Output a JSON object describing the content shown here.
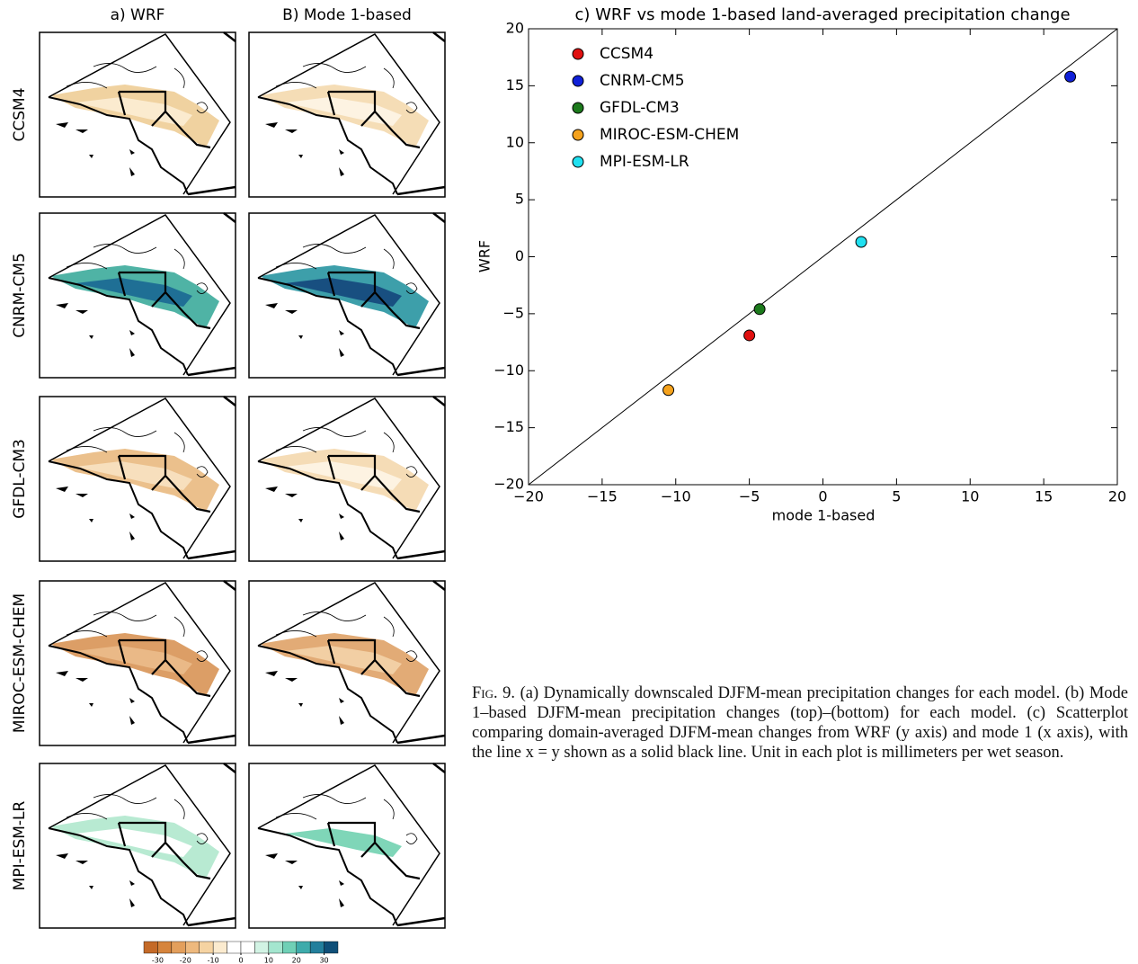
{
  "chart_data": {
    "type": "scatter",
    "title": "c) WRF vs mode 1-based land-averaged precipitation change",
    "xlabel": "mode 1-based",
    "ylabel": "WRF",
    "series": [
      {
        "name": "CCSM4",
        "color": "#e01010",
        "x": [
          -5.0
        ],
        "values": [
          -6.9
        ]
      },
      {
        "name": "CNRM-CM5",
        "color": "#1020d8",
        "x": [
          16.8
        ],
        "values": [
          15.8
        ]
      },
      {
        "name": "GFDL-CM3",
        "color": "#1c7a1c",
        "x": [
          -4.3
        ],
        "values": [
          -4.6
        ]
      },
      {
        "name": "MIROC-ESM-CHEM",
        "color": "#f5a21c",
        "x": [
          -10.5
        ],
        "values": [
          -11.7
        ]
      },
      {
        "name": "MPI-ESM-LR",
        "color": "#20e0f0",
        "x": [
          2.6
        ],
        "values": [
          1.3
        ]
      }
    ],
    "xlim": [
      -20,
      20
    ],
    "xticks": [
      {
        "value": -20,
        "label": "−20"
      },
      {
        "value": -15,
        "label": "−15"
      },
      {
        "value": -10,
        "label": "−10"
      },
      {
        "value": -5,
        "label": "−5"
      },
      0,
      5,
      10,
      15,
      20
    ],
    "ylim": [
      -20,
      20
    ],
    "yticks": [
      {
        "value": -20,
        "label": "−20"
      },
      {
        "value": -15,
        "label": "−15"
      },
      {
        "value": -10,
        "label": "−10"
      },
      {
        "value": -5,
        "label": "−5"
      },
      0,
      5,
      10,
      15,
      20
    ],
    "identity_line": true,
    "grid": false,
    "legend": "upper left"
  },
  "maps": {
    "column_titles": [
      "a) WRF",
      "B) Mode 1-based"
    ],
    "row_labels": [
      "CCSM4",
      "CNRM-CM5",
      "GFDL-CM3",
      "MIROC-ESM-CHEM",
      "MPI-ESM-LR"
    ],
    "colorbar": {
      "boundaries": [
        -35,
        -30,
        -25,
        -20,
        -15,
        -10,
        -5,
        0,
        5,
        10,
        15,
        20,
        25,
        30,
        35
      ],
      "colors": [
        "#c46a28",
        "#d6843c",
        "#e39f5c",
        "#eeb97e",
        "#f5d3a2",
        "#fbebcf",
        "#ffffff",
        "#ffffff",
        "#d2f3e4",
        "#a4e6cf",
        "#6fd0b6",
        "#3eabab",
        "#237f9c",
        "#0f4f78"
      ],
      "ticks": [
        {
          "value": -30,
          "label": "-30"
        },
        {
          "value": -20,
          "label": "-20"
        },
        {
          "value": -10,
          "label": "-10"
        },
        0,
        10,
        20,
        30
      ]
    }
  },
  "caption": {
    "label": "Fig. 9.",
    "text": "(a) Dynamically downscaled DJFM-mean precipitation changes for each model. (b) Mode 1–based DJFM-mean precipitation changes (top)–(bottom) for each model. (c) Scatterplot comparing domain-averaged DJFM-mean changes from WRF (y axis) and mode 1 (x axis), with the line x = y shown as a solid black line. Unit in each plot is millimeters per wet season."
  }
}
